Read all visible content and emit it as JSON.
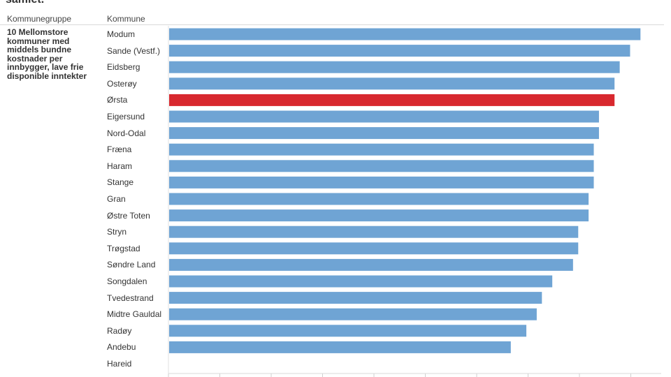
{
  "title_fragment": "samlet.",
  "headers": {
    "group": "Kommunegruppe",
    "municipality": "Kommune"
  },
  "group_name": "10 Mellomstore kommuner med middels bundne kostnader per innbygger, lave frie disponible inntekter",
  "colors": {
    "default_bar": "#6fa4d4",
    "highlight_bar": "#d8282e",
    "grid": "#e2e2e2"
  },
  "chart_data": {
    "type": "bar",
    "orientation": "horizontal",
    "categories": [
      "Modum",
      "Sande (Vestf.)",
      "Eidsberg",
      "Osterøy",
      "Ørsta",
      "Eigersund",
      "Nord-Odal",
      "Fræna",
      "Haram",
      "Stange",
      "Gran",
      "Østre Toten",
      "Stryn",
      "Trøgstad",
      "Søndre Land",
      "Songdalen",
      "Tvedestrand",
      "Midtre Gauldal",
      "Radøy",
      "Andebu",
      "Hareid"
    ],
    "values": [
      9.1,
      8.9,
      8.7,
      8.6,
      8.6,
      8.3,
      8.3,
      8.2,
      8.2,
      8.2,
      8.1,
      8.1,
      7.9,
      7.9,
      7.8,
      7.4,
      7.2,
      7.1,
      6.9,
      6.6,
      0
    ],
    "highlight": "Ørsta",
    "xlim": [
      0,
      9.5
    ],
    "grid": true,
    "xlabel": "",
    "ylabel": ""
  }
}
